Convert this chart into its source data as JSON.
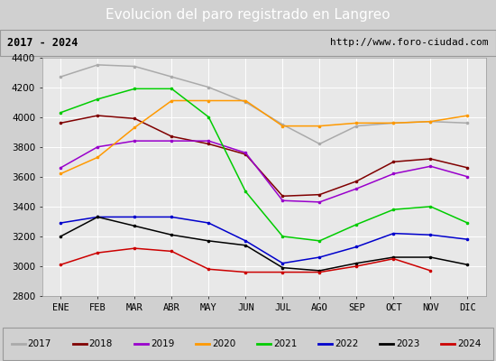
{
  "title": "Evolucion del paro registrado en Langreo",
  "subtitle_left": "2017 - 2024",
  "subtitle_right": "http://www.foro-ciudad.com",
  "months": [
    "ENE",
    "FEB",
    "MAR",
    "ABR",
    "MAY",
    "JUN",
    "JUL",
    "AGO",
    "SEP",
    "OCT",
    "NOV",
    "DIC"
  ],
  "series": {
    "2017": {
      "color": "#aaaaaa",
      "data": [
        4270,
        4350,
        4340,
        4270,
        4200,
        4100,
        3950,
        3820,
        3940,
        3960,
        3970,
        3960
      ]
    },
    "2018": {
      "color": "#800000",
      "data": [
        3960,
        4010,
        3990,
        3870,
        3820,
        3750,
        3470,
        3480,
        3570,
        3700,
        3720,
        3660
      ]
    },
    "2019": {
      "color": "#9900cc",
      "data": [
        3660,
        3800,
        3840,
        3840,
        3840,
        3760,
        3440,
        3430,
        3520,
        3620,
        3670,
        3600
      ]
    },
    "2020": {
      "color": "#ff9900",
      "data": [
        3620,
        3730,
        3930,
        4110,
        4110,
        4110,
        3940,
        3940,
        3960,
        3960,
        3970,
        4010
      ]
    },
    "2021": {
      "color": "#00cc00",
      "data": [
        4030,
        4120,
        4190,
        4190,
        4000,
        3500,
        3200,
        3170,
        3280,
        3380,
        3400,
        3290
      ]
    },
    "2022": {
      "color": "#0000cc",
      "data": [
        3290,
        3330,
        3330,
        3330,
        3290,
        3170,
        3020,
        3060,
        3130,
        3220,
        3210,
        3180
      ]
    },
    "2023": {
      "color": "#000000",
      "data": [
        3200,
        3330,
        3270,
        3210,
        3170,
        3140,
        2990,
        2970,
        3020,
        3060,
        3060,
        3010
      ]
    },
    "2024": {
      "color": "#cc0000",
      "data": [
        3010,
        3090,
        3120,
        3100,
        2980,
        2960,
        2960,
        2960,
        3000,
        3050,
        2970,
        null
      ]
    }
  },
  "ylim": [
    2800,
    4400
  ],
  "yticks": [
    2800,
    3000,
    3200,
    3400,
    3600,
    3800,
    4000,
    4200,
    4400
  ],
  "title_bg": "#4477cc",
  "title_color": "#ffffff",
  "plot_bg": "#e8e8e8",
  "outer_bg": "#d0d0d0",
  "grid_color": "#ffffff",
  "subtitle_bg": "#f0f0f0",
  "legend_bg": "#f0f0f0",
  "title_fontsize": 11,
  "tick_fontsize": 7.5
}
